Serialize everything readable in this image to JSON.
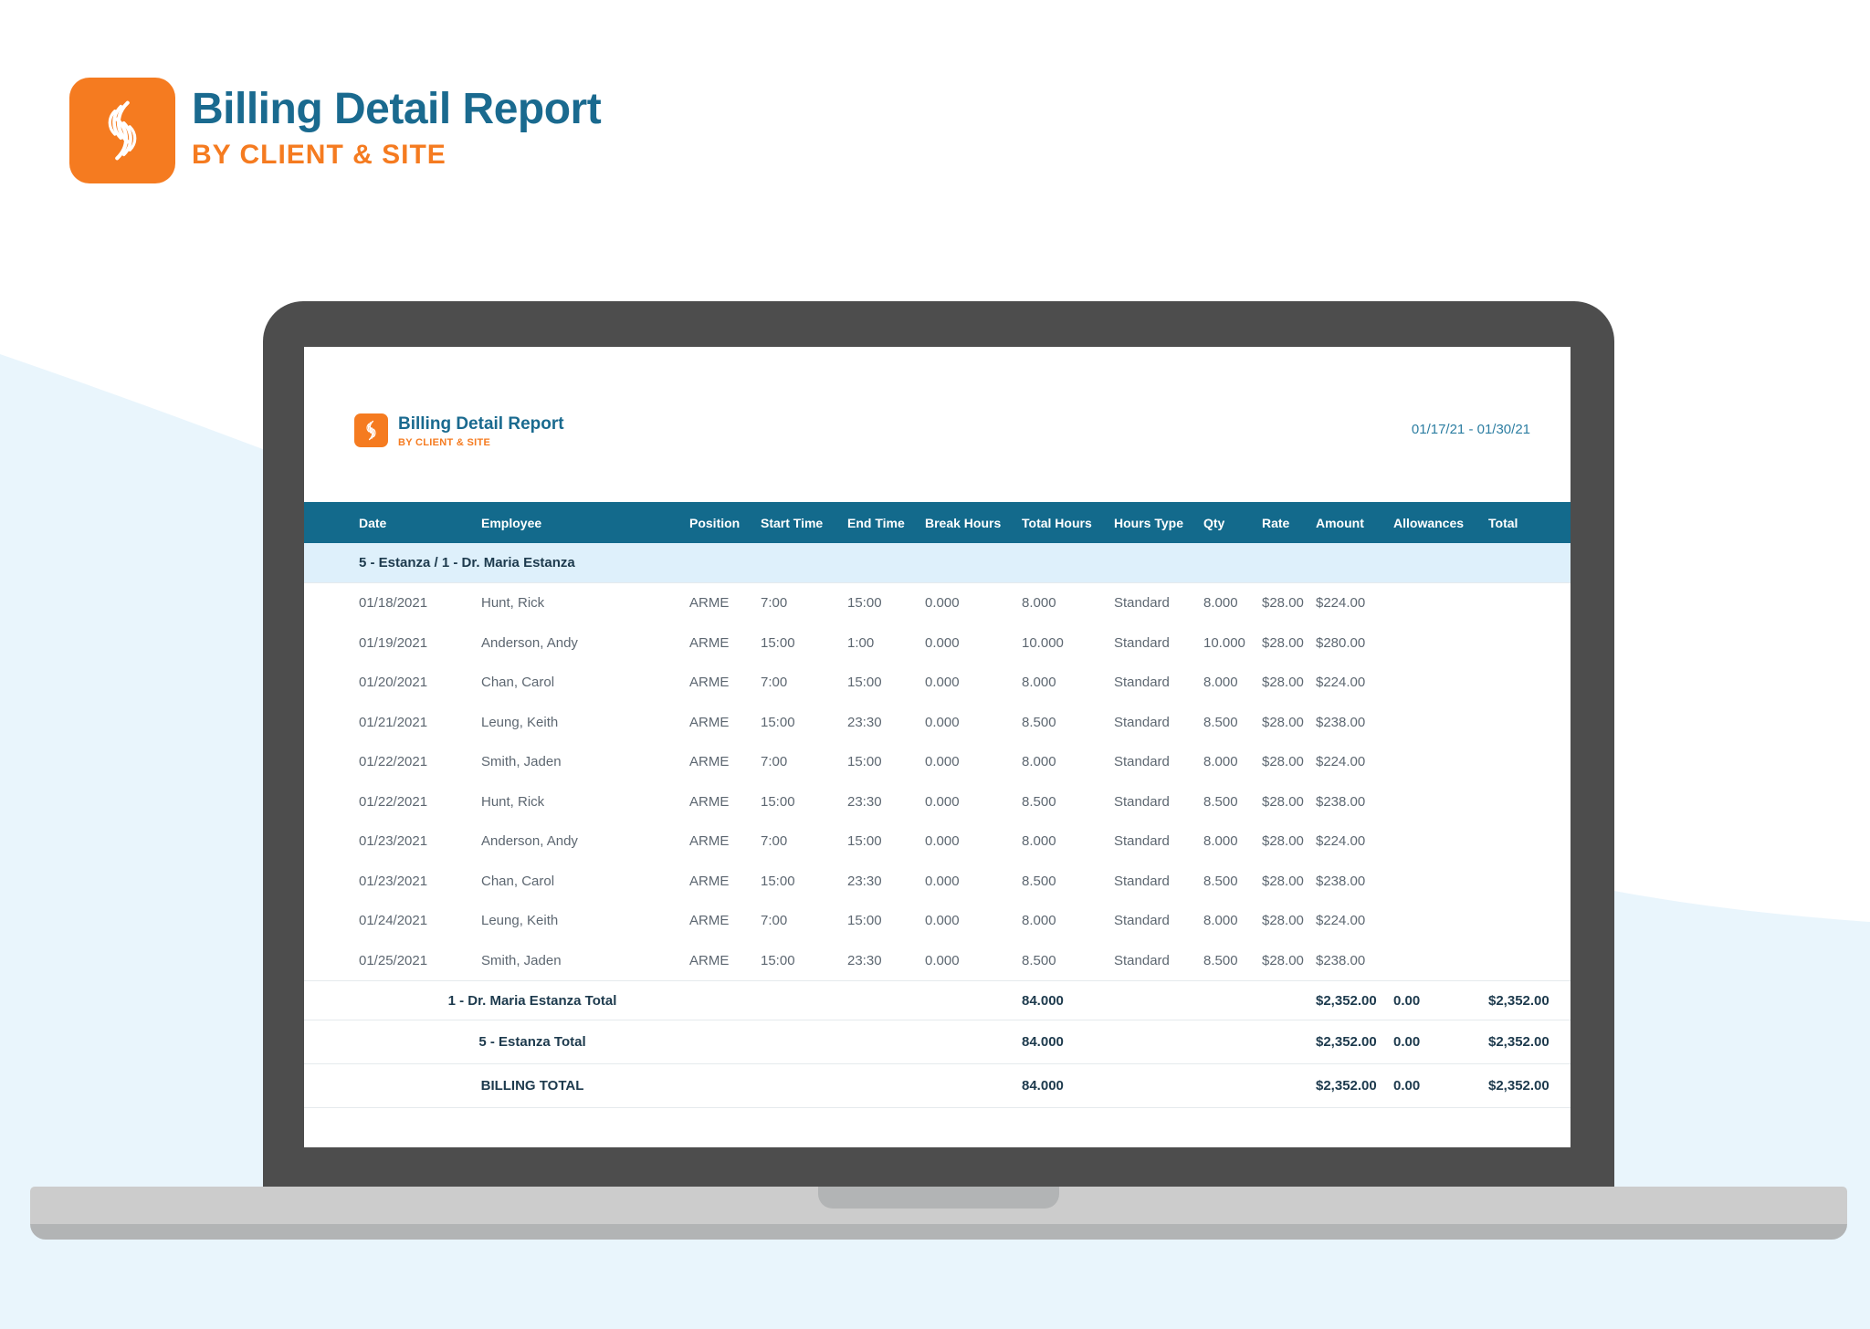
{
  "page_header": {
    "title": "Billing Detail Report",
    "subtitle": "BY CLIENT & SITE"
  },
  "screen": {
    "title": "Billing Detail Report",
    "subtitle": "BY CLIENT & SITE",
    "date_range": "01/17/21 - 01/30/21"
  },
  "table": {
    "columns": [
      "Date",
      "Employee",
      "Position",
      "Start Time",
      "End Time",
      "Break Hours",
      "Total Hours",
      "Hours Type",
      "Qty",
      "Rate",
      "Amount",
      "Allowances",
      "Total"
    ],
    "column_keys": [
      "date",
      "employee",
      "position",
      "start-time",
      "end-time",
      "break-hours",
      "total-hours",
      "hours-type",
      "qty",
      "rate",
      "amount",
      "allowances",
      "total"
    ],
    "group_header": "5 - Estanza / 1 - Dr. Maria Estanza",
    "rows": [
      [
        "01/18/2021",
        "Hunt, Rick",
        "ARME",
        "7:00",
        "15:00",
        "0.000",
        "8.000",
        "Standard",
        "8.000",
        "$28.00",
        "$224.00",
        "",
        ""
      ],
      [
        "01/19/2021",
        "Anderson, Andy",
        "ARME",
        "15:00",
        "1:00",
        "0.000",
        "10.000",
        "Standard",
        "10.000",
        "$28.00",
        "$280.00",
        "",
        ""
      ],
      [
        "01/20/2021",
        "Chan, Carol",
        "ARME",
        "7:00",
        "15:00",
        "0.000",
        "8.000",
        "Standard",
        "8.000",
        "$28.00",
        "$224.00",
        "",
        ""
      ],
      [
        "01/21/2021",
        "Leung, Keith",
        "ARME",
        "15:00",
        "23:30",
        "0.000",
        "8.500",
        "Standard",
        "8.500",
        "$28.00",
        "$238.00",
        "",
        ""
      ],
      [
        "01/22/2021",
        "Smith, Jaden",
        "ARME",
        "7:00",
        "15:00",
        "0.000",
        "8.000",
        "Standard",
        "8.000",
        "$28.00",
        "$224.00",
        "",
        ""
      ],
      [
        "01/22/2021",
        "Hunt, Rick",
        "ARME",
        "15:00",
        "23:30",
        "0.000",
        "8.500",
        "Standard",
        "8.500",
        "$28.00",
        "$238.00",
        "",
        ""
      ],
      [
        "01/23/2021",
        "Anderson, Andy",
        "ARME",
        "7:00",
        "15:00",
        "0.000",
        "8.000",
        "Standard",
        "8.000",
        "$28.00",
        "$224.00",
        "",
        ""
      ],
      [
        "01/23/2021",
        "Chan, Carol",
        "ARME",
        "15:00",
        "23:30",
        "0.000",
        "8.500",
        "Standard",
        "8.500",
        "$28.00",
        "$238.00",
        "",
        ""
      ],
      [
        "01/24/2021",
        "Leung, Keith",
        "ARME",
        "7:00",
        "15:00",
        "0.000",
        "8.000",
        "Standard",
        "8.000",
        "$28.00",
        "$224.00",
        "",
        ""
      ],
      [
        "01/25/2021",
        "Smith, Jaden",
        "ARME",
        "15:00",
        "23:30",
        "0.000",
        "8.500",
        "Standard",
        "8.500",
        "$28.00",
        "$238.00",
        "",
        ""
      ]
    ],
    "totals": [
      {
        "label": "1 - Dr. Maria Estanza Total",
        "total_hours": "84.000",
        "amount": "$2,352.00",
        "allowances": "0.00",
        "total": "$2,352.00"
      },
      {
        "label": "5 - Estanza Total",
        "total_hours": "84.000",
        "amount": "$2,352.00",
        "allowances": "0.00",
        "total": "$2,352.00"
      },
      {
        "label": "BILLING TOTAL",
        "total_hours": "84.000",
        "amount": "$2,352.00",
        "allowances": "0.00",
        "total": "$2,352.00"
      }
    ]
  },
  "colors": {
    "teal": "#1a6a8f",
    "orange": "#f57b20",
    "header_bg": "#136a8c",
    "section_bg": "#def0fb",
    "data_gray": "#5d6771",
    "navy": "#1d3a4d",
    "bg_wash": "#e9f5fc",
    "bezel": "#4d4d4d",
    "base_light": "#cccccc",
    "base_dark": "#b2b4b5"
  }
}
